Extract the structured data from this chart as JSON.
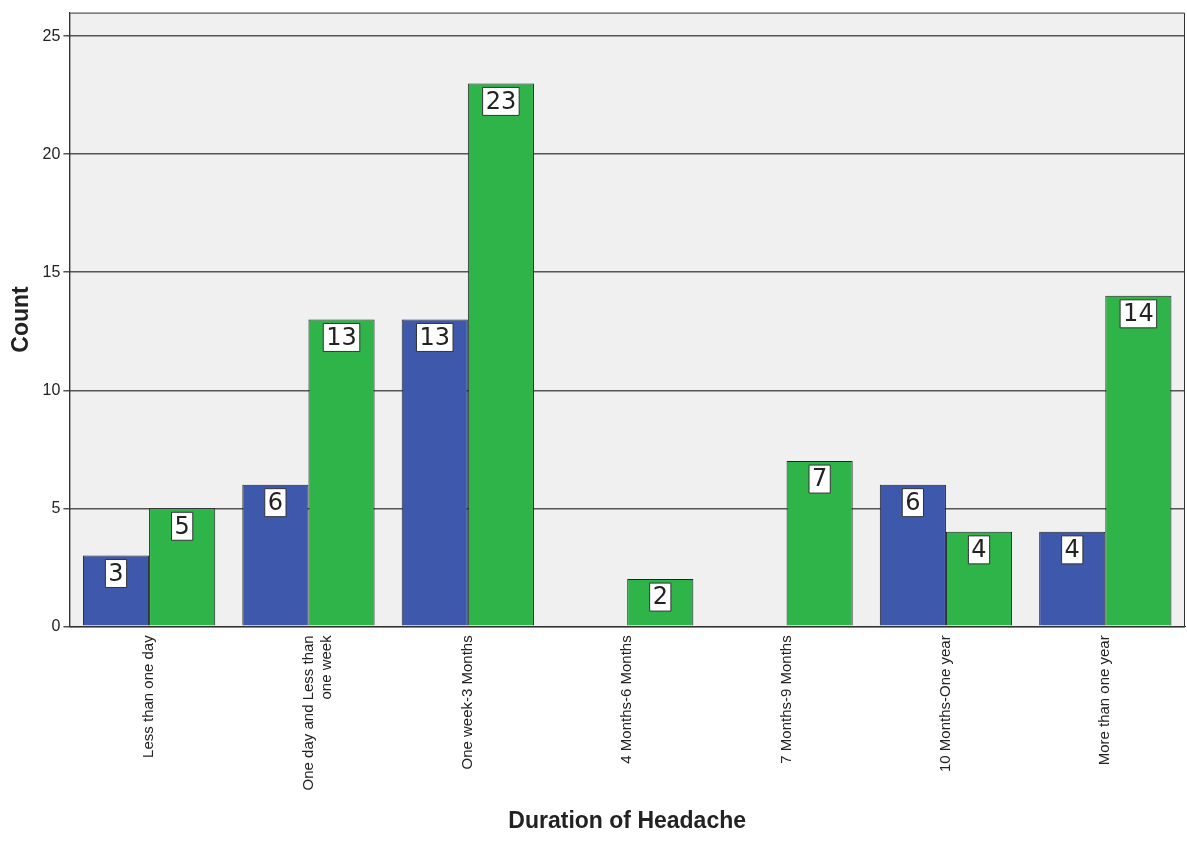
{
  "chart_data": {
    "type": "bar",
    "xlabel": "Duration of Headache",
    "ylabel": "Count",
    "categories": [
      "Less than one day",
      "One day and Less than one week",
      "One week-3 Months",
      "4 Months-6 Months",
      "7 Months-9 Months",
      "10 Months-One year",
      "More than one year"
    ],
    "series": [
      {
        "color": "#3e58ac",
        "values": [
          3,
          6,
          13,
          null,
          null,
          6,
          4
        ]
      },
      {
        "color": "#2fb44a",
        "values": [
          5,
          13,
          23,
          2,
          7,
          4,
          14
        ]
      }
    ],
    "ylim": [
      0,
      26
    ],
    "yticks": [
      0,
      5,
      10,
      15,
      20,
      25
    ],
    "grid": "y",
    "legend": false,
    "data_labels": true
  }
}
